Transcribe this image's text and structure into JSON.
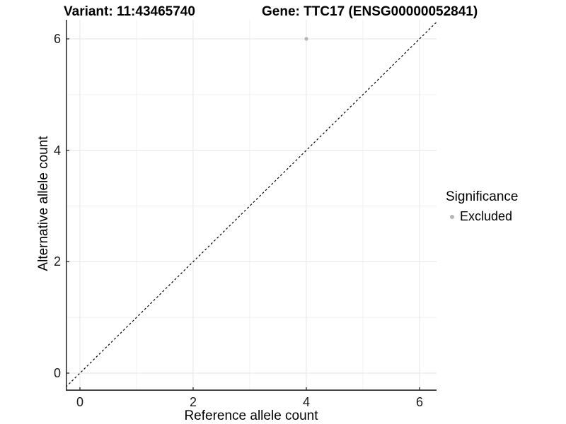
{
  "header": {
    "variant_title": "Variant: 11:43465740",
    "gene_title": "Gene: TTC17 (ENSG00000052841)"
  },
  "chart_data": {
    "type": "scatter",
    "title_left": "Variant: 11:43465740",
    "title_right": "Gene: TTC17 (ENSG00000052841)",
    "xlabel": "Reference allele count",
    "ylabel": "Alternative allele count",
    "x_ticks": [
      0,
      2,
      4,
      6
    ],
    "y_ticks": [
      0,
      2,
      4,
      6
    ],
    "x_minor_ticks": [
      1,
      3,
      5
    ],
    "y_minor_ticks": [
      1,
      3,
      5
    ],
    "xlim": [
      -0.25,
      6.3
    ],
    "ylim": [
      -0.32,
      6.34
    ],
    "grid": "major+minor",
    "points": [
      {
        "x": 4,
        "y": 6,
        "series": "Excluded",
        "color": "#b5b5b5"
      }
    ],
    "reference_line": {
      "slope": 1,
      "intercept": 0,
      "style": "dashed",
      "color": "#000000"
    },
    "legend": {
      "title": "Significance",
      "position": "right",
      "entries": [
        {
          "label": "Excluded",
          "color": "#b5b5b5",
          "marker": "circle"
        }
      ]
    },
    "colors": {
      "axis_line": "#333333",
      "grid_major": "#e5e5e5",
      "grid_minor": "#f0f0f0",
      "background": "#ffffff"
    }
  }
}
